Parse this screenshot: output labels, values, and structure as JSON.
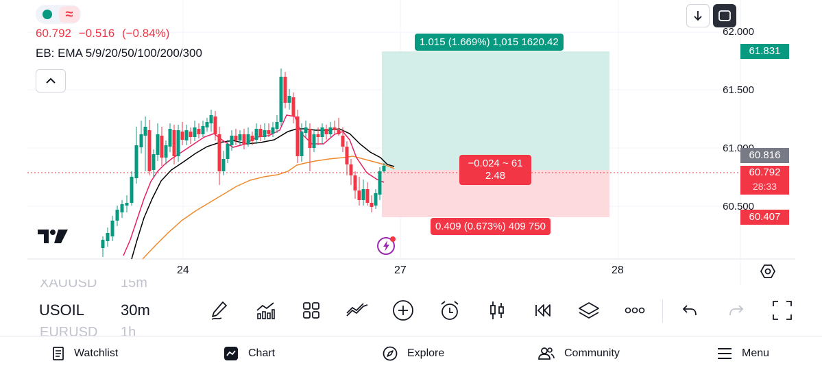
{
  "header": {
    "price": "60.792",
    "change": "−0.516",
    "change_pct": "(−0.84%)",
    "indicator": "EB: EMA 5/9/20/50/100/200/300",
    "wave_symbol": "≈"
  },
  "price_axis": {
    "labels": [
      "62.000",
      "61.500",
      "61.000",
      "60.500"
    ],
    "target_tag": "61.831",
    "entry_tag": "60.816",
    "current_tag": "60.792",
    "countdown_tag": "28:33",
    "stop_tag": "60.407"
  },
  "position": {
    "profit_label": "1.015 (1.669%) 1,015 1620.42",
    "center_label_line1": "−0.024 ~ 61",
    "center_label_line2": "2.48",
    "loss_label": "0.409 (0.673%) 409 750"
  },
  "time_axis": {
    "labels": [
      "24",
      "27",
      "28"
    ]
  },
  "watchlist_scroller": {
    "prev_symbol": "XAUUSD",
    "prev_interval": "15m",
    "current_symbol": "USOIL",
    "current_interval": "30m",
    "next_symbol": "EURUSD",
    "next_interval": "1h"
  },
  "toolbar": {
    "tools": [
      "pencil-icon",
      "indicators-icon",
      "grid-icon",
      "strategy-icon",
      "add-icon",
      "alarm-icon",
      "candles-icon",
      "replay-icon",
      "layers-icon",
      "more-icon"
    ],
    "undo": "undo-icon",
    "redo": "redo-icon",
    "fullscreen": "fullscreen-icon"
  },
  "bottom_nav": {
    "watchlist": "Watchlist",
    "chart": "Chart",
    "explore": "Explore",
    "community": "Community",
    "menu": "Menu"
  },
  "colors": {
    "up": "#089981",
    "down": "#f23645",
    "ema_fast": "#e91e63",
    "ema_mid": "#000000",
    "ema_slow": "#ef8a2c",
    "profit_zone": "#d3ede8",
    "loss_zone": "#fcdade"
  }
}
